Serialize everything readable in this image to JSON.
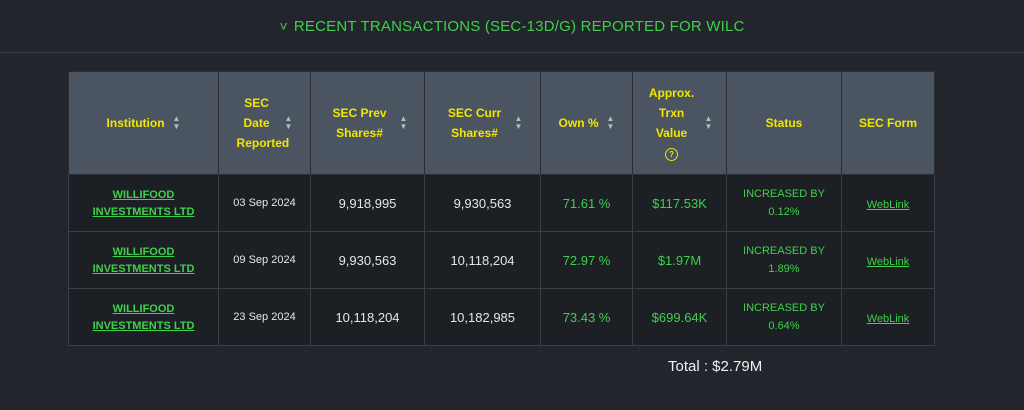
{
  "header": {
    "title": "RECENT TRANSACTIONS (SEC-13D/G) REPORTED FOR WILC",
    "chevron": "˅"
  },
  "table": {
    "columns": [
      "Institution",
      "SEC Date Reported",
      "SEC Prev Shares#",
      "SEC Curr Shares#",
      "Own %",
      "Approx. Trxn Value",
      "Status",
      "SEC Form"
    ],
    "rows": [
      {
        "institution": "WILLIFOOD INVESTMENTS LTD",
        "date": "03 Sep 2024",
        "prev": "9,918,995",
        "curr": "9,930,563",
        "own": "71.61 %",
        "value": "$117.53K",
        "status_line1": "INCREASED BY",
        "status_line2": "0.12%",
        "form": "WebLink"
      },
      {
        "institution": "WILLIFOOD INVESTMENTS LTD",
        "date": "09 Sep 2024",
        "prev": "9,930,563",
        "curr": "10,118,204",
        "own": "72.97 %",
        "value": "$1.97M",
        "status_line1": "INCREASED BY",
        "status_line2": "1.89%",
        "form": "WebLink"
      },
      {
        "institution": "WILLIFOOD INVESTMENTS LTD",
        "date": "23 Sep 2024",
        "prev": "10,118,204",
        "curr": "10,182,985",
        "own": "73.43 %",
        "value": "$699.64K",
        "status_line1": "INCREASED BY",
        "status_line2": "0.64%",
        "form": "WebLink"
      }
    ]
  },
  "total": "Total : $2.79M"
}
